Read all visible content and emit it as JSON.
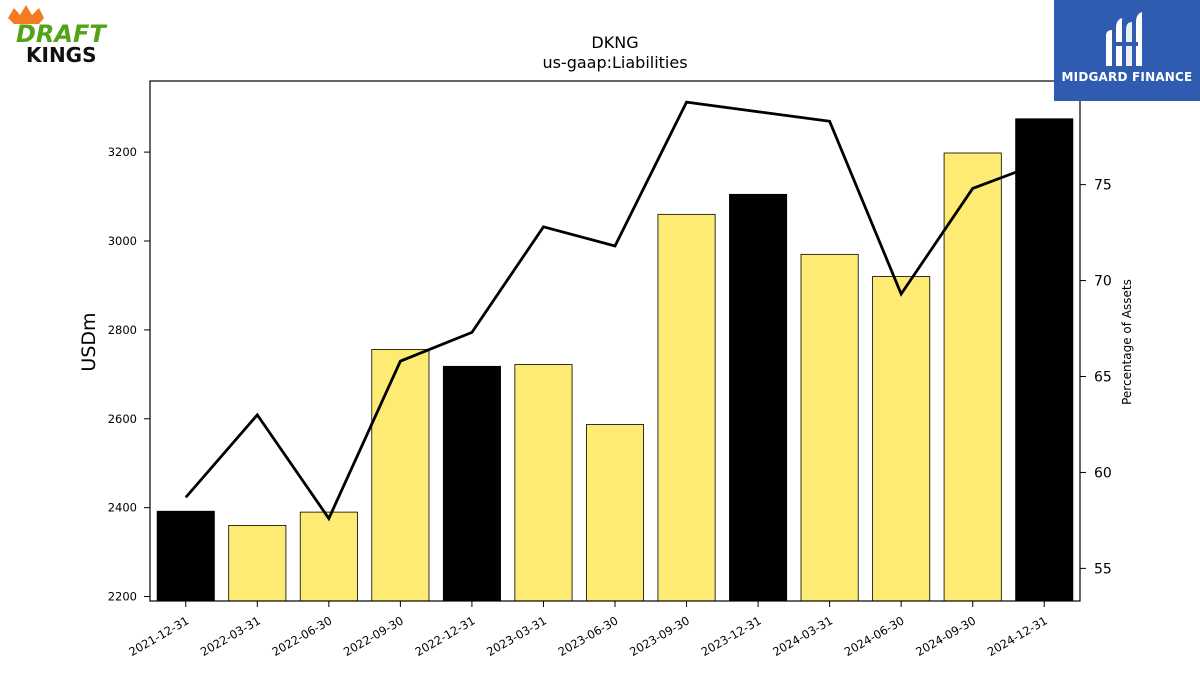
{
  "brand_left": {
    "line1": "DRAFT",
    "line2": "KINGS"
  },
  "brand_right": {
    "name": "MIDGARD FINANCE"
  },
  "colors": {
    "bar_yellow": "#fdeb73",
    "bar_black": "#000000",
    "line": "#000000",
    "logo_blue": "#2f5cb0",
    "logo_green": "#53a318",
    "logo_orange": "#f47b20"
  },
  "chart_data": {
    "type": "bar",
    "title": "DKNG",
    "subtitle": "us-gaap:Liabilities",
    "ylabel": "USDm",
    "y2label": "Percentage of Assets",
    "ylim": [
      2190,
      3360
    ],
    "y2lim": [
      53.3,
      80.4
    ],
    "yticks": [
      2200,
      2400,
      2600,
      2800,
      3000,
      3200
    ],
    "y2ticks": [
      55,
      60,
      65,
      70,
      75
    ],
    "categories": [
      "2021-12-31",
      "2022-03-31",
      "2022-06-30",
      "2022-09-30",
      "2022-12-31",
      "2023-03-31",
      "2023-06-30",
      "2023-09-30",
      "2023-12-31",
      "2024-03-31",
      "2024-06-30",
      "2024-09-30",
      "2024-12-31"
    ],
    "series": [
      {
        "type": "bar",
        "axis": "left",
        "values": [
          2392,
          2360,
          2390,
          2756,
          2718,
          2722,
          2587,
          3060,
          3105,
          2970,
          2920,
          3198,
          3275
        ],
        "highlight": [
          true,
          false,
          false,
          false,
          true,
          false,
          false,
          false,
          true,
          false,
          false,
          false,
          true
        ]
      },
      {
        "type": "line",
        "axis": "right",
        "values": [
          58.7,
          63.0,
          57.6,
          65.8,
          67.3,
          72.8,
          71.8,
          79.3,
          78.8,
          78.3,
          69.3,
          74.8,
          76.2
        ]
      }
    ],
    "grid": false,
    "legend": "none"
  }
}
